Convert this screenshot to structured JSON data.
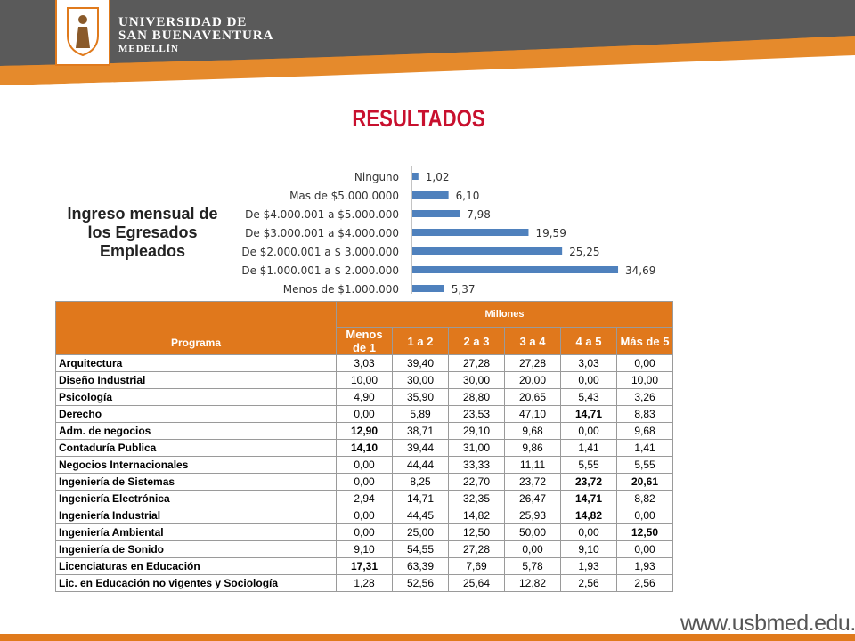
{
  "header": {
    "university_line1": "UNIVERSIDAD DE",
    "university_line2": "SAN BUENAVENTURA",
    "university_line3": "MEDELLÍN"
  },
  "title": "RESULTADOS",
  "side_label": "Ingreso mensual de los Egresados Empleados",
  "colors": {
    "orange": "#e07a1c",
    "gray": "#5a5a5a",
    "bar": "#4f81bd",
    "title": "#c8102e"
  },
  "chart_data": {
    "type": "bar",
    "orientation": "horizontal",
    "categories": [
      "Ninguno",
      "Mas de $5.000.0000",
      "De $4.000.001 a $5.000.000",
      "De $3.000.001 a $4.000.000",
      "De $2.000.001 a $ 3.000.000",
      "De $1.000.001 a $ 2.000.000",
      "Menos de $1.000.000"
    ],
    "values": [
      1.02,
      6.1,
      7.98,
      19.59,
      25.25,
      34.69,
      5.37
    ],
    "value_labels": [
      "1,02",
      "6,10",
      "7,98",
      "19,59",
      "25,25",
      "34,69",
      "5,37"
    ],
    "xlim": [
      0,
      40
    ],
    "grid": false,
    "legend": "none"
  },
  "table": {
    "group_header": "Millones",
    "program_header": "Programa",
    "columns": [
      "Menos de 1",
      "1 a 2",
      "2 a 3",
      "3 a 4",
      "4 a 5",
      "Más de 5"
    ],
    "rows": [
      {
        "name": "Arquitectura",
        "values": [
          "3,03",
          "39,40",
          "27,28",
          "27,28",
          "3,03",
          "0,00"
        ]
      },
      {
        "name": "Diseño Industrial",
        "values": [
          "10,00",
          "30,00",
          "30,00",
          "20,00",
          "0,00",
          "10,00"
        ]
      },
      {
        "name": "Psicología",
        "values": [
          "4,90",
          "35,90",
          "28,80",
          "20,65",
          "5,43",
          "3,26"
        ]
      },
      {
        "name": "Derecho",
        "values": [
          "0,00",
          "5,89",
          "23,53",
          "47,10",
          "14,71",
          "8,83"
        ]
      },
      {
        "name": "Adm. de negocios",
        "values": [
          "12,90",
          "38,71",
          "29,10",
          "9,68",
          "0,00",
          "9,68"
        ]
      },
      {
        "name": "Contaduría Publica",
        "values": [
          "14,10",
          "39,44",
          "31,00",
          "9,86",
          "1,41",
          "1,41"
        ]
      },
      {
        "name": "Negocios Internacionales",
        "values": [
          "0,00",
          "44,44",
          "33,33",
          "11,11",
          "5,55",
          "5,55"
        ]
      },
      {
        "name": "Ingeniería de Sistemas",
        "values": [
          "0,00",
          "8,25",
          "22,70",
          "23,72",
          "23,72",
          "20,61"
        ]
      },
      {
        "name": "Ingeniería Electrónica",
        "values": [
          "2,94",
          "14,71",
          "32,35",
          "26,47",
          "14,71",
          "8,82"
        ]
      },
      {
        "name": "Ingeniería Industrial",
        "values": [
          "0,00",
          "44,45",
          "14,82",
          "25,93",
          "14,82",
          "0,00"
        ]
      },
      {
        "name": "Ingeniería Ambiental",
        "values": [
          "0,00",
          "25,00",
          "12,50",
          "50,00",
          "0,00",
          "12,50"
        ]
      },
      {
        "name": "Ingeniería de Sonido",
        "values": [
          "9,10",
          "54,55",
          "27,28",
          "0,00",
          "9,10",
          "0,00"
        ]
      },
      {
        "name": "Licenciaturas en Educación",
        "values": [
          "17,31",
          "63,39",
          "7,69",
          "5,78",
          "1,93",
          "1,93"
        ]
      },
      {
        "name": "Lic. en Educación no vigentes y Sociología",
        "values": [
          "1,28",
          "52,56",
          "25,64",
          "12,82",
          "2,56",
          "2,56"
        ]
      }
    ],
    "bold_cells": [
      [
        3,
        4
      ],
      [
        4,
        0
      ],
      [
        5,
        0
      ],
      [
        7,
        4
      ],
      [
        7,
        5
      ],
      [
        8,
        4
      ],
      [
        9,
        4
      ],
      [
        10,
        5
      ],
      [
        12,
        0
      ]
    ]
  },
  "footer": {
    "url": "www.usbmed.edu.co"
  }
}
